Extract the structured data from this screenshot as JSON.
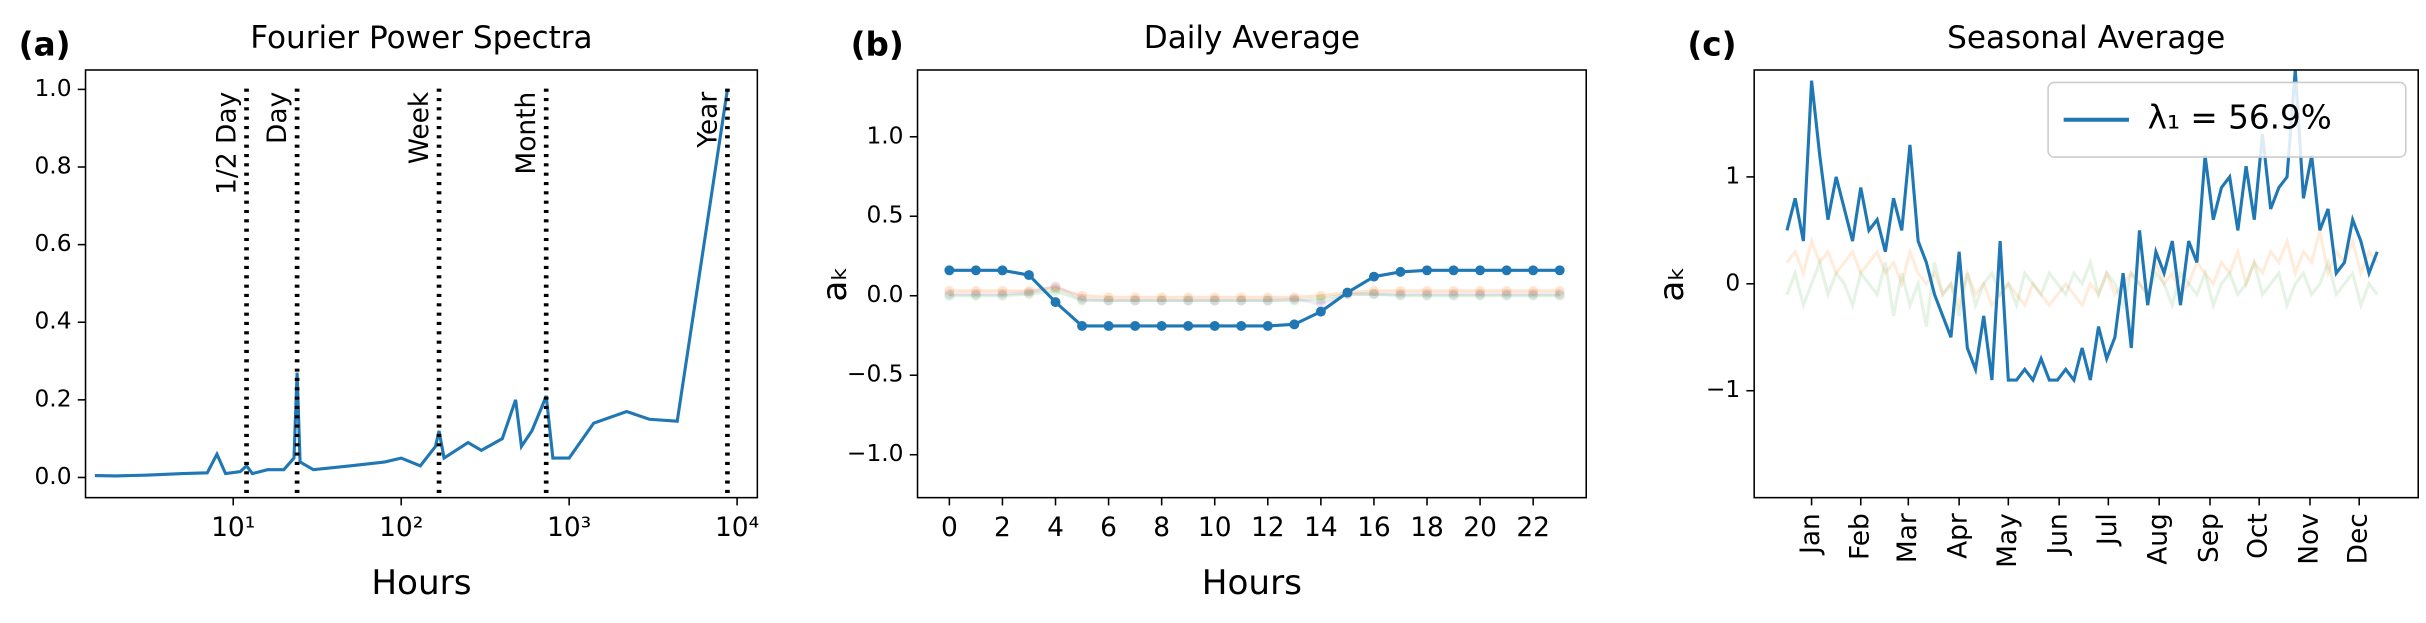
{
  "chart_data": [
    {
      "type": "line",
      "panel_label": "(a)",
      "title": "Fourier Power Spectra",
      "xlabel": "Hours",
      "xlog": true,
      "xlim": [
        1.32,
        13200
      ],
      "ylim": [
        -0.052,
        1.05
      ],
      "xticks": [
        {
          "value": 10,
          "label": "10¹"
        },
        {
          "value": 100,
          "label": "10²"
        },
        {
          "value": 1000,
          "label": "10³"
        },
        {
          "value": 10000,
          "label": "10⁴"
        }
      ],
      "yticks": [
        {
          "value": 0,
          "label": "0.0"
        },
        {
          "value": 0.2,
          "label": "0.2"
        },
        {
          "value": 0.4,
          "label": "0.4"
        },
        {
          "value": 0.6,
          "label": "0.6"
        },
        {
          "value": 0.8,
          "label": "0.8"
        },
        {
          "value": 1,
          "label": "1.0"
        }
      ],
      "vlines": [
        {
          "value": 12,
          "label": "1/2 Day"
        },
        {
          "value": 24,
          "label": "Day"
        },
        {
          "value": 168,
          "label": "Week"
        },
        {
          "value": 730,
          "label": "Month"
        },
        {
          "value": 8760,
          "label": "Year"
        }
      ],
      "x": [
        1.5,
        2,
        3,
        5,
        7,
        8,
        9,
        11,
        12,
        13,
        16,
        20,
        23,
        24,
        25,
        30,
        50,
        80,
        100,
        130,
        160,
        168,
        180,
        250,
        300,
        400,
        480,
        520,
        600,
        700,
        730,
        800,
        1000,
        1400,
        2200,
        3000,
        4400,
        8760
      ],
      "series": [
        {
          "color": "#1f77b4",
          "values": [
            0.005,
            0.004,
            0.006,
            0.01,
            0.012,
            0.06,
            0.01,
            0.015,
            0.03,
            0.01,
            0.02,
            0.02,
            0.05,
            0.27,
            0.04,
            0.02,
            0.03,
            0.04,
            0.05,
            0.03,
            0.08,
            0.12,
            0.05,
            0.09,
            0.07,
            0.1,
            0.2,
            0.08,
            0.12,
            0.19,
            0.21,
            0.05,
            0.05,
            0.14,
            0.17,
            0.15,
            0.145,
            1.0
          ]
        }
      ]
    },
    {
      "type": "line",
      "panel_label": "(b)",
      "title": "Daily Average",
      "xlabel": "Hours",
      "ylabel": "aₖ",
      "markers": true,
      "xlim": [
        -1.2,
        24
      ],
      "ylim": [
        -1.27,
        1.42
      ],
      "xticks": [
        0,
        2,
        4,
        6,
        8,
        10,
        12,
        14,
        16,
        18,
        20,
        22
      ],
      "yticks": [
        {
          "value": -1,
          "label": "−1.0"
        },
        {
          "value": -0.5,
          "label": "−0.5"
        },
        {
          "value": 0,
          "label": "0.0"
        },
        {
          "value": 0.5,
          "label": "0.5"
        },
        {
          "value": 1,
          "label": "1.0"
        }
      ],
      "x": [
        0,
        1,
        2,
        3,
        4,
        5,
        6,
        7,
        8,
        9,
        10,
        11,
        12,
        13,
        14,
        15,
        16,
        17,
        18,
        19,
        20,
        21,
        22,
        23
      ],
      "series": [
        {
          "color": "#ff7f0e",
          "opacity": 0.2,
          "values": [
            0.03,
            0.03,
            0.03,
            0.03,
            0.05,
            0.0,
            -0.01,
            -0.01,
            -0.01,
            -0.01,
            -0.01,
            -0.01,
            -0.01,
            -0.01,
            0.0,
            0.02,
            0.03,
            0.03,
            0.03,
            0.03,
            0.03,
            0.03,
            0.03,
            0.03
          ]
        },
        {
          "color": "#2ca02c",
          "opacity": 0.15,
          "values": [
            0.0,
            0.0,
            0.0,
            0.01,
            0.03,
            -0.03,
            -0.03,
            -0.03,
            -0.03,
            -0.03,
            -0.03,
            -0.03,
            -0.03,
            -0.03,
            -0.02,
            0.01,
            0.01,
            0.0,
            0.0,
            0.0,
            0.0,
            0.0,
            0.0,
            0.0
          ]
        },
        {
          "color": "#9467bd",
          "opacity": 0.15,
          "values": [
            0.01,
            0.01,
            0.01,
            0.02,
            0.06,
            -0.02,
            -0.03,
            -0.03,
            -0.03,
            -0.03,
            -0.03,
            -0.03,
            -0.03,
            -0.02,
            -0.05,
            0.01,
            0.01,
            0.01,
            0.01,
            0.01,
            0.01,
            0.01,
            0.01,
            0.01
          ]
        },
        {
          "color": "#1f77b4",
          "values": [
            0.16,
            0.16,
            0.16,
            0.13,
            -0.04,
            -0.19,
            -0.19,
            -0.19,
            -0.19,
            -0.19,
            -0.19,
            -0.19,
            -0.19,
            -0.18,
            -0.1,
            0.02,
            0.12,
            0.15,
            0.16,
            0.16,
            0.16,
            0.16,
            0.16,
            0.16
          ]
        }
      ]
    },
    {
      "type": "line",
      "panel_label": "(c)",
      "title": "Seasonal Average",
      "ylabel": "aₖ",
      "legend": "upper right",
      "xtick_rotation": -90,
      "xlim": [
        -20,
        385
      ],
      "ylim": [
        -2,
        2
      ],
      "xticks": [
        {
          "value": 15,
          "label": "Jan"
        },
        {
          "value": 45,
          "label": "Feb"
        },
        {
          "value": 74,
          "label": "Mar"
        },
        {
          "value": 105,
          "label": "Apr"
        },
        {
          "value": 135,
          "label": "May"
        },
        {
          "value": 166,
          "label": "Jun"
        },
        {
          "value": 196,
          "label": "Jul"
        },
        {
          "value": 227,
          "label": "Aug"
        },
        {
          "value": 258,
          "label": "Sep"
        },
        {
          "value": 288,
          "label": "Oct"
        },
        {
          "value": 319,
          "label": "Nov"
        },
        {
          "value": 349,
          "label": "Dec"
        }
      ],
      "yticks": [
        {
          "value": -1,
          "label": "−1"
        },
        0,
        1
      ],
      "x": [
        0,
        5,
        10,
        15,
        20,
        25,
        30,
        35,
        40,
        45,
        50,
        55,
        60,
        65,
        70,
        75,
        80,
        85,
        90,
        95,
        100,
        105,
        110,
        115,
        120,
        125,
        130,
        135,
        140,
        145,
        150,
        155,
        160,
        165,
        170,
        175,
        180,
        185,
        190,
        195,
        200,
        205,
        210,
        215,
        220,
        225,
        230,
        235,
        240,
        245,
        250,
        255,
        260,
        265,
        270,
        275,
        280,
        285,
        290,
        295,
        300,
        305,
        310,
        315,
        320,
        325,
        330,
        335,
        340,
        345,
        350,
        355,
        360
      ],
      "series": [
        {
          "color": "#ff7f0e",
          "opacity": 0.15,
          "values": [
            0.2,
            0.3,
            0.1,
            0.4,
            0.2,
            0.3,
            0.1,
            0.2,
            0.3,
            0.1,
            0.2,
            0.3,
            0.1,
            0.2,
            0.0,
            0.3,
            0.1,
            0.0,
            0.1,
            -0.1,
            0.0,
            -0.2,
            0.1,
            -0.1,
            0.0,
            -0.2,
            -0.1,
            0.0,
            -0.1,
            -0.2,
            0.0,
            -0.1,
            -0.2,
            -0.1,
            0.0,
            -0.1,
            -0.2,
            0.0,
            -0.1,
            0.1,
            -0.1,
            0.0,
            0.1,
            0.0,
            -0.1,
            0.2,
            0.0,
            0.1,
            -0.1,
            0.0,
            0.2,
            0.1,
            0.0,
            0.2,
            0.1,
            0.3,
            0.0,
            0.2,
            0.1,
            0.3,
            0.2,
            0.4,
            0.1,
            0.3,
            0.2,
            0.5,
            0.1,
            0.3,
            0.2,
            0.4,
            0.1,
            0.3,
            0.2
          ]
        },
        {
          "color": "#2ca02c",
          "opacity": 0.12,
          "values": [
            -0.1,
            0.1,
            -0.2,
            0.0,
            0.2,
            -0.1,
            0.1,
            0.0,
            -0.2,
            0.1,
            0.0,
            -0.1,
            0.2,
            -0.3,
            0.1,
            -0.2,
            0.0,
            -0.4,
            0.2,
            -0.1,
            0.0,
            -0.3,
            0.1,
            -0.2,
            0.0,
            0.1,
            -0.1,
            0.0,
            -0.2,
            0.1,
            0.0,
            -0.1,
            0.1,
            0.0,
            -0.1,
            0.1,
            0.0,
            0.2,
            -0.1,
            0.1,
            0.0,
            -0.2,
            0.1,
            0.0,
            -0.1,
            0.1,
            0.0,
            -0.2,
            0.1,
            0.0,
            -0.1,
            0.1,
            -0.2,
            0.0,
            0.1,
            -0.1,
            0.0,
            0.2,
            -0.1,
            0.0,
            0.1,
            -0.2,
            0.0,
            0.1,
            -0.1,
            0.0,
            0.2,
            -0.1,
            0.0,
            0.1,
            -0.2,
            0.0,
            -0.1
          ]
        },
        {
          "name": "λ₁ = 56.9%",
          "color": "#1f77b4",
          "values": [
            0.5,
            0.8,
            0.4,
            1.9,
            1.2,
            0.6,
            1.0,
            0.7,
            0.4,
            0.9,
            0.5,
            0.6,
            0.3,
            0.8,
            0.5,
            1.3,
            0.4,
            0.2,
            -0.1,
            -0.3,
            -0.5,
            0.3,
            -0.6,
            -0.8,
            -0.3,
            -0.9,
            0.4,
            -0.9,
            -0.9,
            -0.8,
            -0.9,
            -0.7,
            -0.9,
            -0.9,
            -0.8,
            -0.9,
            -0.6,
            -0.9,
            -0.4,
            -0.7,
            -0.5,
            0.1,
            -0.6,
            0.5,
            -0.2,
            0.3,
            0.1,
            0.4,
            -0.2,
            0.4,
            0.2,
            1.2,
            0.6,
            0.9,
            1.0,
            0.5,
            1.1,
            0.6,
            1.4,
            0.7,
            0.9,
            1.0,
            2.0,
            0.8,
            1.2,
            0.5,
            0.7,
            0.1,
            0.2,
            0.6,
            0.4,
            0.1,
            0.3
          ]
        }
      ]
    }
  ]
}
